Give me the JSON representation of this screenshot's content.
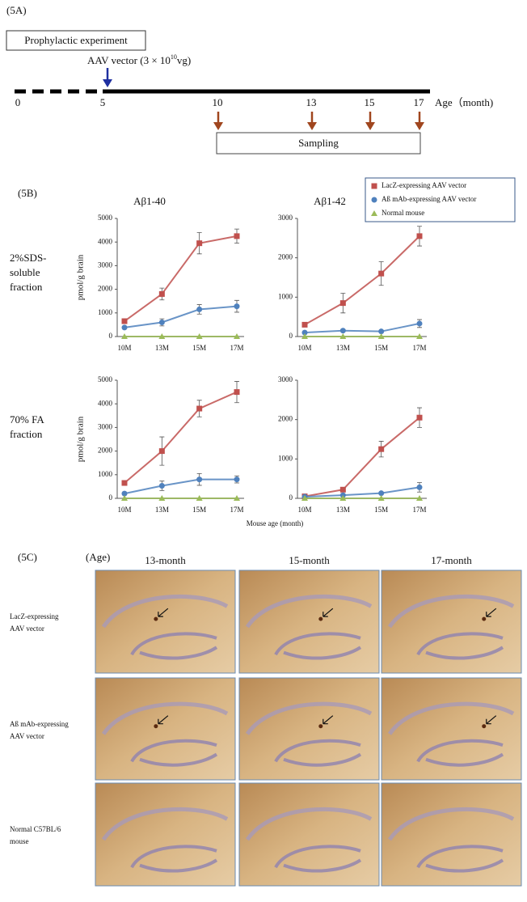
{
  "panel_a": {
    "label": "(5A)",
    "box_label": "Prophylactic experiment",
    "vector_label": {
      "text": "AAV vector (3 × 10",
      "exponent": "10",
      "unit": "vg)"
    },
    "ticks": [
      0,
      5,
      10,
      13,
      15,
      17
    ],
    "axis_label": "Age（month)",
    "sampling_label": "Sampling"
  },
  "panel_b": {
    "label": "(5B)",
    "row_labels": [
      [
        "2%SDS-",
        "soluble",
        "fraction"
      ],
      [
        "70% FA",
        "fraction"
      ]
    ],
    "x_axis_label": "Mouse age (month)"
  },
  "chart_data": [
    {
      "type": "line",
      "title": "Aβ1-40",
      "ylabel": "pmol/g brain",
      "categories": [
        "10M",
        "13M",
        "15M",
        "17M"
      ],
      "ylim": [
        0,
        5000
      ],
      "yticks": [
        0,
        1000,
        2000,
        3000,
        4000,
        5000
      ],
      "series": [
        {
          "name": "LacZ-expressing AAV vector",
          "color": "#c0504d",
          "marker": "square",
          "values": [
            650,
            1800,
            3950,
            4250
          ],
          "errors": [
            100,
            250,
            450,
            300
          ]
        },
        {
          "name": "Aß mAb-expressing AAV vector",
          "color": "#4f81bd",
          "marker": "circle",
          "values": [
            380,
            600,
            1150,
            1280
          ],
          "errors": [
            50,
            150,
            200,
            250
          ]
        },
        {
          "name": "Normal mouse",
          "color": "#9bbb59",
          "marker": "triangle",
          "values": [
            0,
            0,
            0,
            0
          ]
        }
      ]
    },
    {
      "type": "line",
      "title": "Aβ1-42",
      "categories": [
        "10M",
        "13M",
        "15M",
        "17M"
      ],
      "ylim": [
        0,
        3000
      ],
      "yticks": [
        0,
        1000,
        2000,
        3000
      ],
      "series": [
        {
          "color": "#c0504d",
          "marker": "square",
          "values": [
            300,
            850,
            1600,
            2550
          ],
          "errors": [
            50,
            250,
            300,
            250
          ]
        },
        {
          "color": "#4f81bd",
          "marker": "circle",
          "values": [
            100,
            150,
            130,
            330
          ],
          "errors": [
            20,
            30,
            30,
            100
          ]
        },
        {
          "color": "#9bbb59",
          "marker": "triangle",
          "values": [
            0,
            0,
            0,
            0
          ]
        }
      ]
    },
    {
      "type": "line",
      "ylabel": "pmol/g brain",
      "categories": [
        "10M",
        "13M",
        "15M",
        "17M"
      ],
      "ylim": [
        0,
        5000
      ],
      "yticks": [
        0,
        1000,
        2000,
        3000,
        4000,
        5000
      ],
      "series": [
        {
          "color": "#c0504d",
          "marker": "square",
          "values": [
            650,
            2000,
            3800,
            4500
          ],
          "errors": [
            80,
            600,
            350,
            450
          ]
        },
        {
          "color": "#4f81bd",
          "marker": "circle",
          "values": [
            200,
            530,
            800,
            800
          ],
          "errors": [
            50,
            200,
            250,
            150
          ]
        },
        {
          "color": "#9bbb59",
          "marker": "triangle",
          "values": [
            0,
            0,
            0,
            0
          ]
        }
      ]
    },
    {
      "type": "line",
      "categories": [
        "10M",
        "13M",
        "15M",
        "17M"
      ],
      "ylim": [
        0,
        3000
      ],
      "yticks": [
        0,
        1000,
        2000,
        3000
      ],
      "series": [
        {
          "color": "#c0504d",
          "marker": "square",
          "values": [
            50,
            220,
            1250,
            2050
          ],
          "errors": [
            20,
            50,
            200,
            250
          ]
        },
        {
          "color": "#4f81bd",
          "marker": "circle",
          "values": [
            40,
            80,
            130,
            280
          ],
          "errors": [
            10,
            20,
            30,
            120
          ]
        },
        {
          "color": "#9bbb59",
          "marker": "triangle",
          "values": [
            0,
            0,
            0,
            0
          ]
        }
      ]
    }
  ],
  "panel_c": {
    "label": "(5C)",
    "age_label": "(Age)",
    "columns": [
      "13-month",
      "15-month",
      "17-month"
    ],
    "rows": [
      [
        "LacZ-expressing",
        "AAV vector"
      ],
      [
        "Aß mAb-expressing",
        "AAV vector"
      ],
      [
        "Normal C57BL/6",
        "mouse"
      ]
    ]
  }
}
